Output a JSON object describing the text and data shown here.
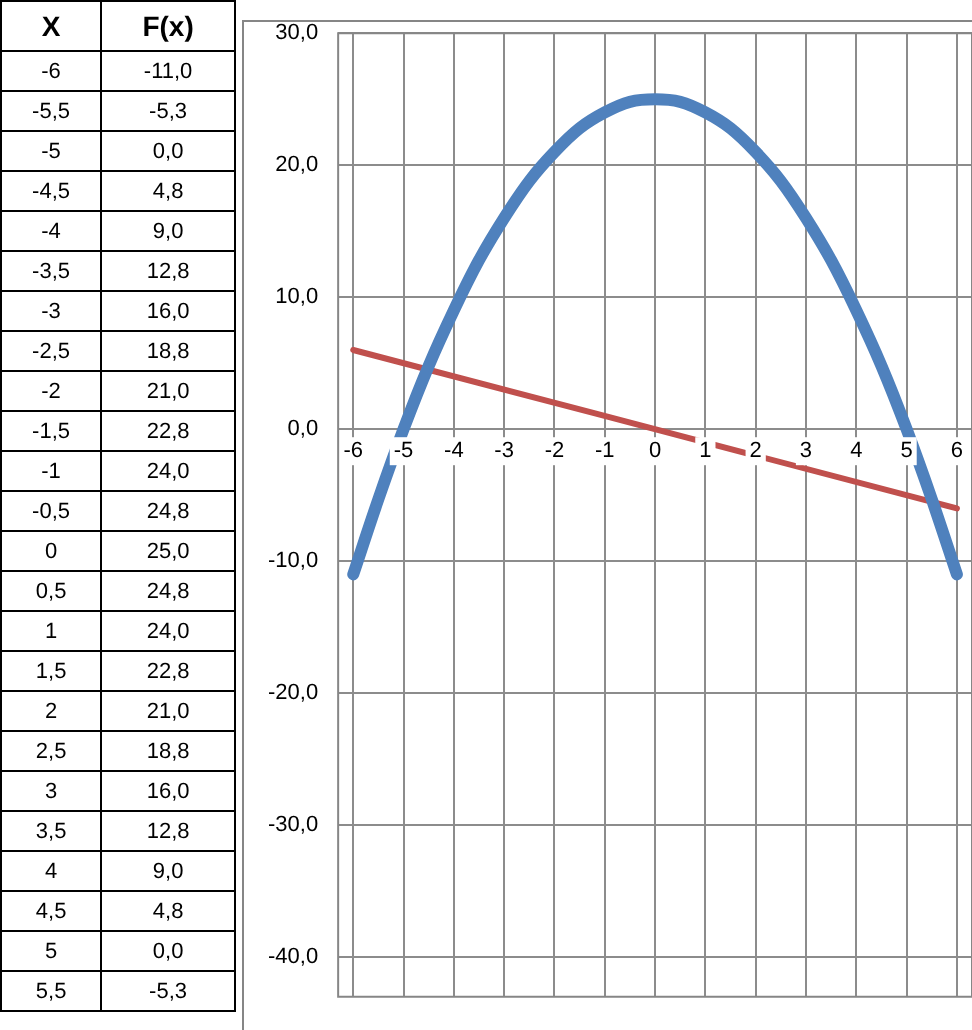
{
  "chart_data": [
    {
      "type": "heatmap",
      "ylabel": "X",
      "categories": [
        "F(x)"
      ],
      "y_categories": [
        "-6",
        "-5,5",
        "-5",
        "-4,5",
        "-4",
        "-3,5",
        "-3",
        "-2,5",
        "-2",
        "-1,5",
        "-1",
        "-0,5",
        "0",
        "0,5",
        "1",
        "1,5",
        "2",
        "2,5",
        "3",
        "3,5",
        "4",
        "4,5",
        "5",
        "5,5"
      ],
      "cells": [
        [
          -11.0
        ],
        [
          -5.3
        ],
        [
          0.0
        ],
        [
          4.8
        ],
        [
          9.0
        ],
        [
          12.8
        ],
        [
          16.0
        ],
        [
          18.8
        ],
        [
          21.0
        ],
        [
          22.8
        ],
        [
          24.0
        ],
        [
          24.8
        ],
        [
          25.0
        ],
        [
          24.8
        ],
        [
          24.0
        ],
        [
          22.8
        ],
        [
          21.0
        ],
        [
          18.8
        ],
        [
          16.0
        ],
        [
          12.8
        ],
        [
          9.0
        ],
        [
          4.8
        ],
        [
          0.0
        ],
        [
          -5.3
        ]
      ],
      "cell_labels": [
        [
          "-11,0"
        ],
        [
          "-5,3"
        ],
        [
          "0,0"
        ],
        [
          "4,8"
        ],
        [
          "9,0"
        ],
        [
          "12,8"
        ],
        [
          "16,0"
        ],
        [
          "18,8"
        ],
        [
          "21,0"
        ],
        [
          "22,8"
        ],
        [
          "24,0"
        ],
        [
          "24,8"
        ],
        [
          "25,0"
        ],
        [
          "24,8"
        ],
        [
          "24,0"
        ],
        [
          "22,8"
        ],
        [
          "21,0"
        ],
        [
          "18,8"
        ],
        [
          "16,0"
        ],
        [
          "12,8"
        ],
        [
          "9,0"
        ],
        [
          "4,8"
        ],
        [
          "0,0"
        ],
        [
          "-5,3"
        ]
      ]
    },
    {
      "type": "line",
      "xlim": [
        -6.3,
        6.3
      ],
      "xticks": [
        -6,
        -5,
        -4,
        -3,
        -2,
        -1,
        0,
        1,
        2,
        3,
        4,
        5,
        6
      ],
      "ylim": [
        -43,
        30
      ],
      "yticks": [
        {
          "value": -40,
          "label": "-40,0"
        },
        {
          "value": -30,
          "label": "-30,0"
        },
        {
          "value": -20,
          "label": "-20,0"
        },
        {
          "value": -10,
          "label": "-10,0"
        },
        {
          "value": 0,
          "label": "0,0"
        },
        {
          "value": 10,
          "label": "10,0"
        },
        {
          "value": 20,
          "label": "20,0"
        },
        {
          "value": 30,
          "label": "30,0"
        }
      ],
      "grid": true,
      "legend": false,
      "marker": "none",
      "line_style": "solid",
      "series": [
        {
          "color": "#4f81bd",
          "x": [
            -6,
            -5.5,
            -5,
            -4.5,
            -4,
            -3.5,
            -3,
            -2.5,
            -2,
            -1.5,
            -1,
            -0.5,
            0,
            0.5,
            1,
            1.5,
            2,
            2.5,
            3,
            3.5,
            4,
            4.5,
            5,
            5.5,
            6
          ],
          "values": [
            -11,
            -5.3,
            0,
            4.8,
            9,
            12.8,
            16,
            18.8,
            21,
            22.8,
            24,
            24.8,
            25,
            24.8,
            24,
            22.8,
            21,
            18.8,
            16,
            12.8,
            9,
            4.8,
            0,
            -5.3,
            -11
          ]
        },
        {
          "color": "#c0504d",
          "x": [
            -6,
            6
          ],
          "values": [
            6,
            -6
          ]
        }
      ]
    }
  ]
}
